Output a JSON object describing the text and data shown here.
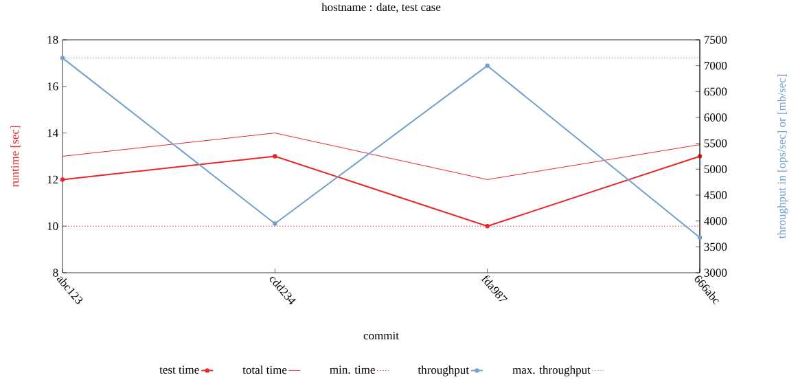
{
  "chart_data": {
    "type": "line",
    "title": "hostname : date, test case",
    "xlabel": "commit",
    "ylabel": "runtime [sec]",
    "y2label": "throughput in [ops/sec] or [mb/sec]",
    "categories": [
      "abc123",
      "cdd234",
      "fda987",
      "666abc"
    ],
    "ylim": [
      8,
      18
    ],
    "yticks": [
      8,
      10,
      12,
      14,
      16,
      18
    ],
    "y2lim": [
      3000,
      7500
    ],
    "y2ticks": [
      3000,
      3500,
      4000,
      4500,
      5000,
      5500,
      6000,
      6500,
      7000,
      7500
    ],
    "grid": false,
    "legend": "bottom",
    "series": [
      {
        "name": "test time",
        "color": "#e8262b",
        "values": [
          12,
          13,
          10,
          13
        ],
        "marker": "circle"
      },
      {
        "name": "total time",
        "color": "#e8262b",
        "values": [
          13,
          14,
          12,
          13.5
        ],
        "marker": "none"
      },
      {
        "name": "min. time",
        "color": "#e8262b",
        "values": [
          10,
          10,
          10,
          10
        ],
        "marker": "none",
        "line_style": "dotted"
      },
      {
        "name": "throughput",
        "color": "#729fcf",
        "axis": "y2",
        "values": [
          7150,
          3950,
          7000,
          3680
        ],
        "marker": "circle"
      },
      {
        "name": "max. throughput",
        "color": "#729fcf",
        "axis": "y2",
        "values": [
          7150,
          7150,
          7150,
          7150
        ],
        "marker": "none",
        "line_style": "dotted"
      }
    ]
  }
}
